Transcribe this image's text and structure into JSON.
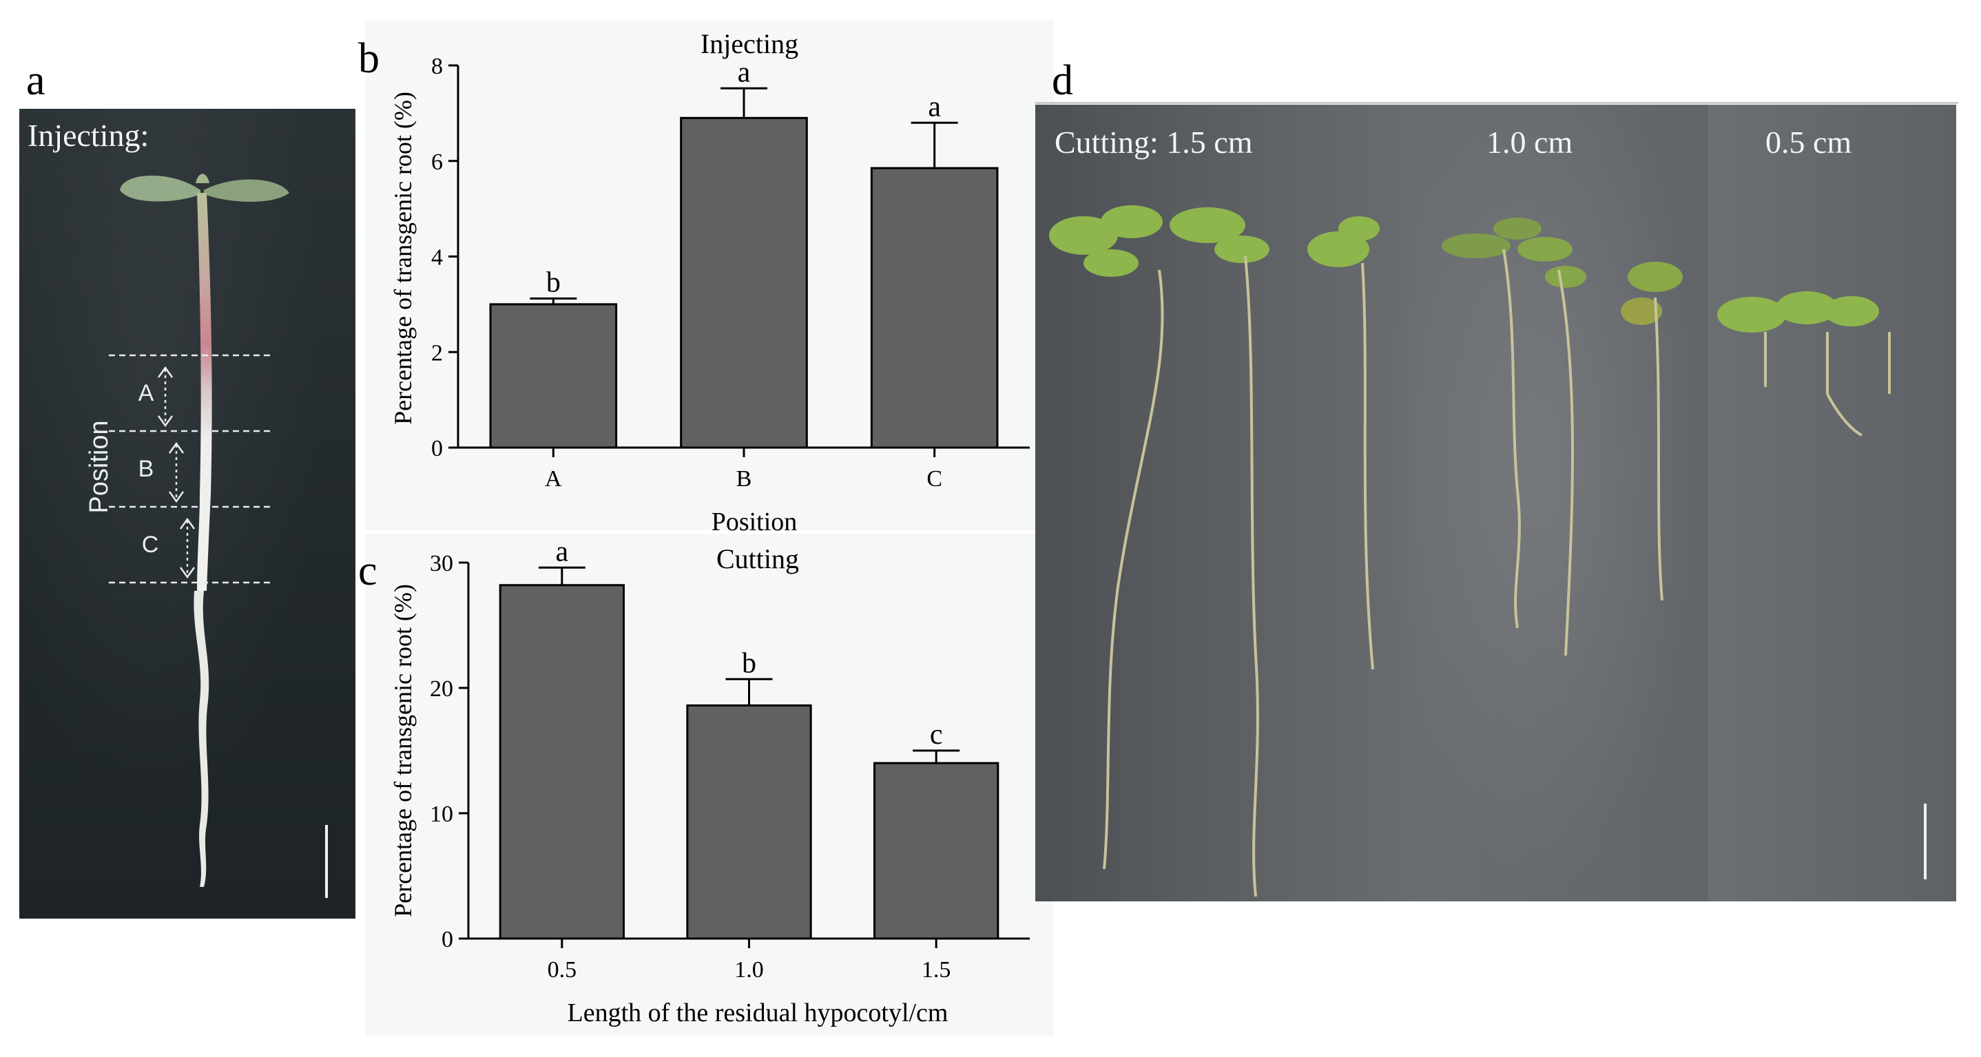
{
  "panels": {
    "a": {
      "letter": "a",
      "label": "Injecting:",
      "position_label": "Position",
      "segments": [
        "A",
        "B",
        "C"
      ]
    },
    "d": {
      "letter": "d",
      "labels": [
        "Cutting: 1.5 cm",
        "1.0 cm",
        "0.5 cm"
      ]
    }
  },
  "chart_data": [
    {
      "panel": "b",
      "type": "bar",
      "title": "Injecting",
      "categories": [
        "A",
        "B",
        "C"
      ],
      "values": [
        3.0,
        6.9,
        5.85
      ],
      "errors": [
        0.12,
        0.62,
        0.95
      ],
      "significance": [
        "b",
        "a",
        "a"
      ],
      "xlabel": "Position",
      "ylabel": "Percentage of transgenic root (%)",
      "ylim": [
        0,
        8
      ],
      "yticks": [
        0,
        2,
        4,
        6,
        8
      ],
      "bar_color": "#616161",
      "grid": false,
      "legend": "none"
    },
    {
      "panel": "c",
      "type": "bar",
      "title": "Cutting",
      "categories": [
        "0.5",
        "1.0",
        "1.5"
      ],
      "values": [
        28.2,
        18.6,
        14.0
      ],
      "errors": [
        1.4,
        2.1,
        1.0
      ],
      "significance": [
        "a",
        "b",
        "c"
      ],
      "xlabel": "Length of the residual hypocotyl/cm",
      "ylabel": "Percentage of transgenic root (%)",
      "ylim": [
        0,
        30
      ],
      "yticks": [
        0,
        10,
        20,
        30
      ],
      "bar_color": "#616161",
      "grid": false,
      "legend": "none"
    }
  ]
}
